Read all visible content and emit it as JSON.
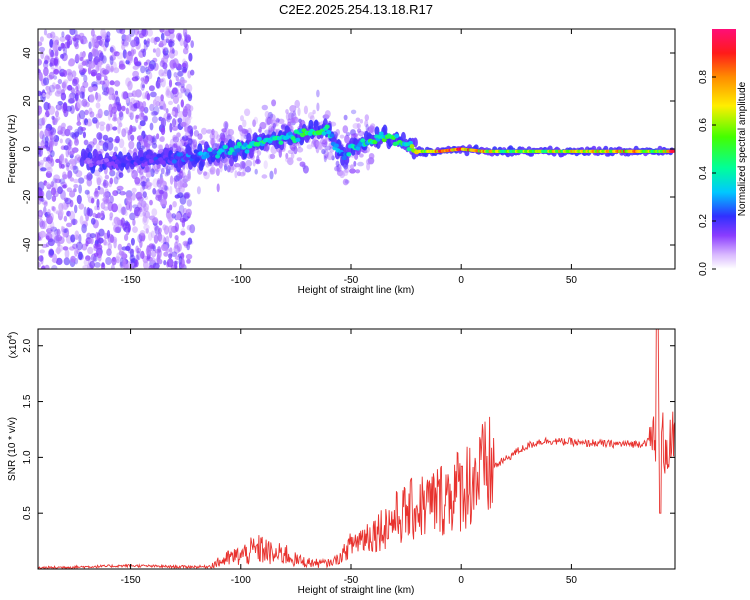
{
  "title": "C2E2.2025.254.13.18.R17",
  "top_panel": {
    "xlabel": "Height of straight line (km)",
    "ylabel": "Frequency (Hz)",
    "xlim": [
      -192,
      97
    ],
    "ylim": [
      -50,
      50
    ],
    "xticks": [
      "-150",
      "-100",
      "-50",
      "0",
      "50"
    ],
    "xtick_values": [
      -150,
      -100,
      -50,
      0,
      50
    ],
    "yticks": [
      "-40",
      "-20",
      "0",
      "20",
      "40"
    ],
    "ytick_values": [
      -40,
      -20,
      0,
      20,
      40
    ]
  },
  "colorbar": {
    "label": "Normalized spectral amplitude",
    "ticks": [
      "0.0",
      "0.2",
      "0.4",
      "0.6",
      "0.8"
    ],
    "tick_values": [
      0,
      0.2,
      0.4,
      0.6,
      0.8
    ],
    "range": [
      0,
      1
    ]
  },
  "bottom_panel": {
    "xlabel": "Height of straight line (km)",
    "ylabel": "SNR (10 * v/v)",
    "scale_label_base": "(x10",
    "scale_label_exp": "4",
    "scale_label_end": ")",
    "xlim": [
      -192,
      97
    ],
    "ylim": [
      0,
      2.15
    ],
    "xticks": [
      "-150",
      "-100",
      "-50",
      "0",
      "50"
    ],
    "xtick_values": [
      -150,
      -100,
      -50,
      0,
      50
    ],
    "yticks": [
      "0.5",
      "1.0",
      "1.5",
      "2.0"
    ],
    "ytick_values": [
      0.5,
      1.0,
      1.5,
      2.0
    ]
  },
  "chart_data": [
    {
      "type": "heatmap",
      "title": "C2E2.2025.254.13.18.R17",
      "xlabel": "Height of straight line (km)",
      "ylabel": "Frequency (Hz)",
      "x_range": [
        -192,
        97
      ],
      "y_range": [
        -50,
        50
      ],
      "value_label": "Normalized spectral amplitude",
      "ridge": {
        "x": [
          -170,
          -150,
          -130,
          -110,
          -100,
          -90,
          -80,
          -70,
          -60,
          -55,
          -45,
          -35,
          -25,
          -20,
          -10,
          0,
          10,
          20,
          40,
          60,
          80,
          90,
          95
        ],
        "y": [
          -5,
          -5,
          -4,
          -2,
          0,
          3,
          5,
          7,
          8,
          -3,
          3,
          5,
          2,
          -1,
          -1,
          0,
          -1,
          -1,
          -1,
          -1,
          -1,
          -1,
          -1
        ],
        "peak_amplitude": [
          0.15,
          0.2,
          0.25,
          0.35,
          0.4,
          0.45,
          0.45,
          0.5,
          0.45,
          0.3,
          0.45,
          0.5,
          0.45,
          0.7,
          0.9,
          0.95,
          0.8,
          0.6,
          0.7,
          0.8,
          0.85,
          0.55,
          0.95
        ]
      }
    },
    {
      "type": "line",
      "title": "",
      "xlabel": "Height of straight line (km)",
      "ylabel": "SNR (10 * v/v) (x10^4)",
      "xlim": [
        -192,
        97
      ],
      "ylim": [
        0,
        2.15
      ],
      "series": [
        {
          "name": "SNR",
          "color": "#e8322e",
          "x": [
            -192,
            -170,
            -150,
            -130,
            -115,
            -110,
            -105,
            -100,
            -95,
            -90,
            -85,
            -80,
            -75,
            -70,
            -65,
            -60,
            -55,
            -50,
            -45,
            -40,
            -35,
            -30,
            -25,
            -20,
            -15,
            -10,
            -5,
            0,
            5,
            10,
            15,
            20,
            25,
            30,
            35,
            40,
            45,
            50,
            55,
            60,
            65,
            70,
            75,
            80,
            85,
            88,
            90,
            92,
            97
          ],
          "y": [
            0.01,
            0.02,
            0.03,
            0.02,
            0.02,
            0.06,
            0.1,
            0.12,
            0.16,
            0.18,
            0.12,
            0.14,
            0.08,
            0.06,
            0.05,
            0.05,
            0.1,
            0.22,
            0.28,
            0.32,
            0.38,
            0.45,
            0.5,
            0.55,
            0.58,
            0.62,
            0.68,
            0.72,
            0.8,
            0.86,
            0.92,
            0.98,
            1.05,
            1.1,
            1.14,
            1.15,
            1.14,
            1.14,
            1.12,
            1.13,
            1.12,
            1.12,
            1.12,
            1.12,
            1.14,
            1.18,
            1.15,
            1.12,
            1.12
          ]
        }
      ]
    }
  ],
  "colors": {
    "snr_line": "#e8322e",
    "axes": "#000000"
  }
}
